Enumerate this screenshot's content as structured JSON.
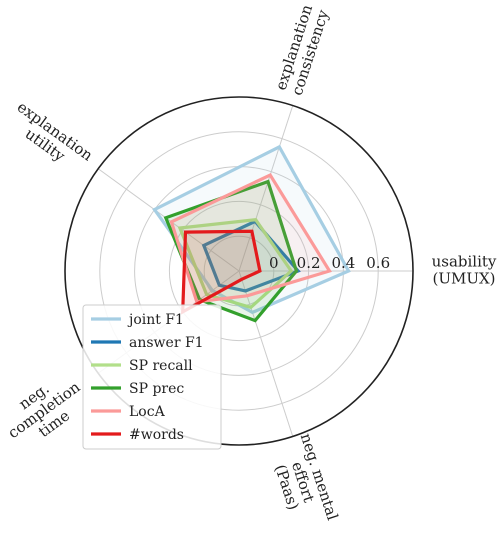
{
  "chart_data": {
    "type": "radar",
    "axes": [
      {
        "label_lines": [
          "usability",
          "(UMUX)"
        ]
      },
      {
        "label_lines": [
          "explanation",
          "consistency"
        ]
      },
      {
        "label_lines": [
          "explanation",
          "utility"
        ]
      },
      {
        "label_lines": [
          "neg.",
          "completion",
          "time"
        ]
      },
      {
        "label_lines": [
          "neg. mental",
          "effort",
          "(Paas)"
        ]
      }
    ],
    "rlim": [
      -0.2,
      0.8
    ],
    "rticks": [
      "0",
      "0.2",
      "0.4",
      "0.6"
    ],
    "rtick_values": [
      0,
      0.2,
      0.4,
      0.6
    ],
    "grid": true,
    "legend_position": "lower-left",
    "series": [
      {
        "name": "joint F1",
        "color": "#a6cee3",
        "values": [
          0.43,
          0.55,
          0.4,
          -0.01,
          0.05
        ]
      },
      {
        "name": "answer F1",
        "color": "#1f78b4",
        "values": [
          0.14,
          0.1,
          0.05,
          -0.06,
          -0.08
        ]
      },
      {
        "name": "SP recall",
        "color": "#b2df8a",
        "values": [
          0.1,
          0.11,
          0.22,
          0.03,
          0.02
        ]
      },
      {
        "name": "SP prec",
        "color": "#33a02c",
        "values": [
          0.13,
          0.34,
          0.32,
          0.08,
          0.1
        ]
      },
      {
        "name": "LocA",
        "color": "#fb9a99",
        "values": [
          0.32,
          0.38,
          0.28,
          0.1,
          -0.05
        ]
      },
      {
        "name": "#words",
        "color": "#e31a1c",
        "values": [
          -0.08,
          0.04,
          0.18,
          0.2,
          -0.15
        ]
      }
    ]
  }
}
